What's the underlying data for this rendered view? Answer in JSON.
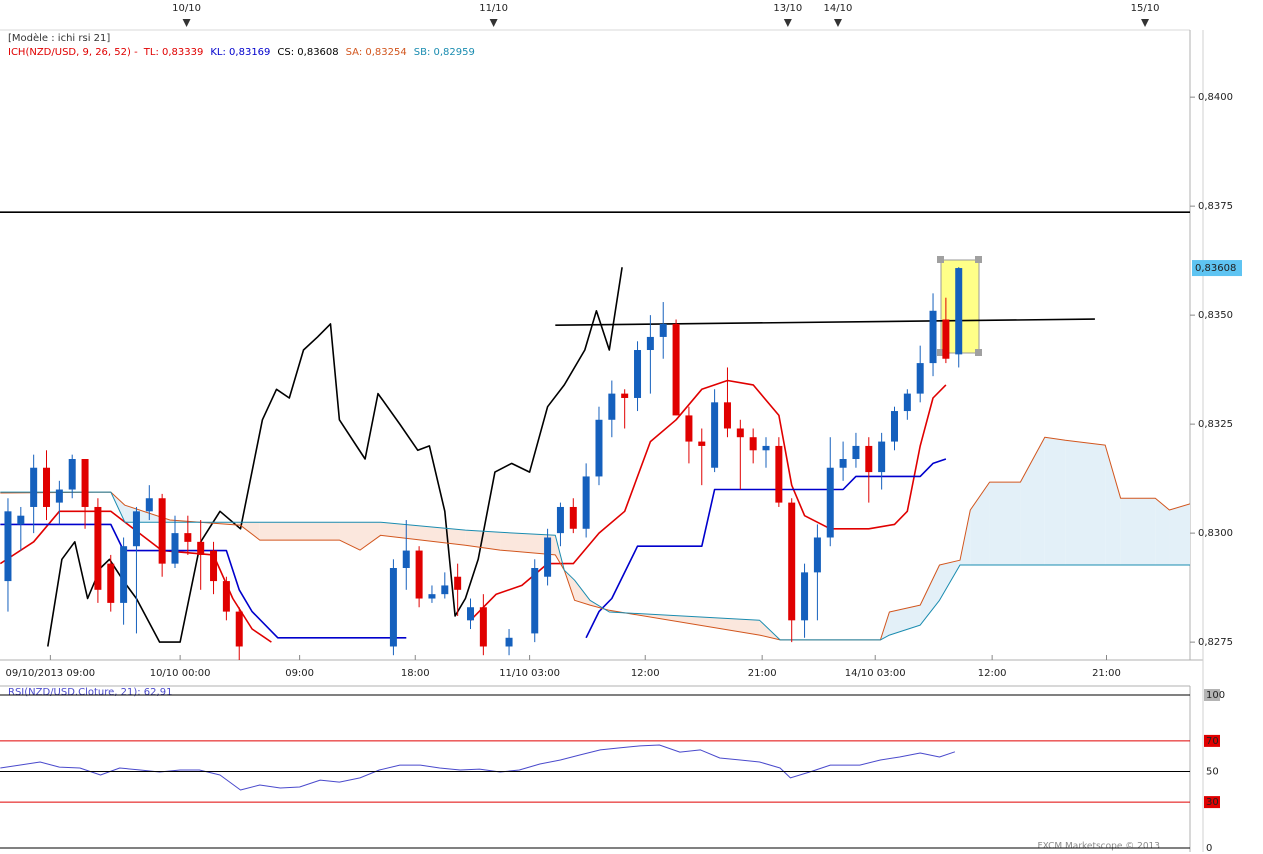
{
  "chart_data": [
    {
      "type": "candlestick",
      "title": "[Modèle : ichi rsi 21]",
      "legend_items": [
        {
          "text": "ICH(NZD/USD, 9, 26, 52) -",
          "color": "#e00000"
        },
        {
          "text": "TL: 0,83339",
          "color": "#e00000"
        },
        {
          "text": "KL: 0,83169",
          "color": "#0000cc"
        },
        {
          "text": "CS: 0,83608",
          "color": "#000000"
        },
        {
          "text": "SA: 0,83254",
          "color": "#d2561e"
        },
        {
          "text": "SB: 0,82959",
          "color": "#1a8cb0"
        }
      ],
      "up_color": "#1560bd",
      "down_color": "#e00000",
      "x": [
        0,
        1,
        2,
        3,
        4,
        5,
        6,
        7,
        8,
        9,
        10,
        11,
        12,
        13,
        14,
        15,
        16,
        17,
        18,
        30,
        31,
        32,
        33,
        34,
        35,
        36,
        37,
        39,
        41,
        42,
        43,
        44,
        45,
        46,
        47,
        48,
        49,
        50,
        51,
        52,
        53,
        54,
        55,
        56,
        57,
        58,
        59,
        60,
        61,
        62,
        63,
        64,
        65,
        66,
        67,
        68,
        69,
        70,
        71,
        72,
        73,
        74
      ],
      "open": [
        0.8289,
        0.8302,
        0.8306,
        0.8315,
        0.8307,
        0.831,
        0.8317,
        0.8306,
        0.8293,
        0.8284,
        0.8297,
        0.8305,
        0.8308,
        0.8293,
        0.83,
        0.8298,
        0.8296,
        0.8289,
        0.8282,
        0.8274,
        0.8292,
        0.8296,
        0.8285,
        0.8286,
        0.829,
        0.828,
        0.8283,
        0.8274,
        0.8277,
        0.829,
        0.83,
        0.8306,
        0.8301,
        0.8313,
        0.8326,
        0.8332,
        0.8331,
        0.8342,
        0.8345,
        0.8348,
        0.8327,
        0.8321,
        0.8315,
        0.833,
        0.8324,
        0.8322,
        0.8319,
        0.832,
        0.8307,
        0.828,
        0.8291,
        0.8299,
        0.8315,
        0.8317,
        0.832,
        0.8314,
        0.8321,
        0.8328,
        0.8332,
        0.8339,
        0.8349,
        0.8341
      ],
      "high": [
        0.8308,
        0.8306,
        0.8318,
        0.8319,
        0.8312,
        0.8318,
        0.8317,
        0.8308,
        0.8295,
        0.8299,
        0.8306,
        0.8311,
        0.8309,
        0.8304,
        0.8304,
        0.8303,
        0.8298,
        0.829,
        0.8283,
        0.8294,
        0.8303,
        0.8297,
        0.8288,
        0.8291,
        0.8293,
        0.8285,
        0.8286,
        0.8278,
        0.8294,
        0.8301,
        0.8307,
        0.8308,
        0.8316,
        0.8329,
        0.8335,
        0.8333,
        0.8344,
        0.835,
        0.8353,
        0.8349,
        0.8329,
        0.8324,
        0.8333,
        0.8338,
        0.8326,
        0.8324,
        0.8322,
        0.8322,
        0.8308,
        0.8293,
        0.8302,
        0.8322,
        0.8321,
        0.8323,
        0.8322,
        0.8323,
        0.8329,
        0.8333,
        0.8343,
        0.8355,
        0.8354,
        0.8361
      ],
      "low": [
        0.8282,
        0.8296,
        0.83,
        0.8303,
        0.8302,
        0.8308,
        0.8301,
        0.8284,
        0.8282,
        0.8279,
        0.8277,
        0.8303,
        0.829,
        0.8292,
        0.8295,
        0.8287,
        0.8286,
        0.828,
        0.827,
        0.8272,
        0.8287,
        0.8283,
        0.8284,
        0.8285,
        0.8281,
        0.8278,
        0.8272,
        0.8272,
        0.8275,
        0.8288,
        0.8297,
        0.83,
        0.8299,
        0.8311,
        0.8322,
        0.8324,
        0.8328,
        0.8332,
        0.834,
        0.8327,
        0.8316,
        0.8311,
        0.8314,
        0.8322,
        0.831,
        0.8316,
        0.8315,
        0.8306,
        0.8275,
        0.8276,
        0.828,
        0.8297,
        0.8312,
        0.8315,
        0.8307,
        0.831,
        0.8319,
        0.8326,
        0.833,
        0.8336,
        0.8339,
        0.8338
      ],
      "close": [
        0.8305,
        0.8304,
        0.8315,
        0.8306,
        0.831,
        0.8317,
        0.8306,
        0.8287,
        0.8284,
        0.8297,
        0.8305,
        0.8308,
        0.8293,
        0.83,
        0.8298,
        0.8295,
        0.8289,
        0.8282,
        0.8274,
        0.8292,
        0.8296,
        0.8285,
        0.8286,
        0.8288,
        0.8287,
        0.8283,
        0.8274,
        0.8276,
        0.8292,
        0.8299,
        0.8306,
        0.8301,
        0.8313,
        0.8326,
        0.8332,
        0.8331,
        0.8342,
        0.8345,
        0.8348,
        0.8327,
        0.8321,
        0.832,
        0.833,
        0.8324,
        0.8322,
        0.8319,
        0.832,
        0.8307,
        0.828,
        0.8291,
        0.8299,
        0.8315,
        0.8317,
        0.832,
        0.8314,
        0.8321,
        0.8328,
        0.8332,
        0.8339,
        0.8351,
        0.834,
        0.83608
      ],
      "series": [
        {
          "color": "#e00000",
          "x": [
            -0.6,
            2,
            4,
            8,
            12,
            16,
            17.5,
            19,
            20.5,
            28,
            36,
            38,
            40,
            42,
            44,
            46,
            48,
            50,
            52,
            54,
            56,
            58,
            60,
            61,
            62,
            64,
            67,
            69,
            70,
            71,
            72,
            73
          ],
          "values": [
            0.8293,
            0.8298,
            0.8305,
            0.8305,
            0.8296,
            0.8295,
            0.8285,
            0.8278,
            0.8275,
            null,
            0.828,
            0.8286,
            0.8288,
            0.8293,
            0.8293,
            0.83,
            0.8305,
            0.8321,
            0.8326,
            0.8333,
            0.8335,
            0.8334,
            0.8327,
            0.8311,
            0.8304,
            0.8301,
            0.8301,
            0.8302,
            0.8305,
            0.832,
            0.8331,
            0.8334
          ]
        },
        {
          "color": "#0000cc",
          "x": [
            -0.6,
            8,
            9,
            17,
            18,
            19,
            21,
            31,
            38,
            45,
            46,
            47,
            49,
            54,
            55,
            65,
            66,
            71,
            72,
            73
          ],
          "values": [
            0.8302,
            0.8302,
            0.8296,
            0.8296,
            0.8287,
            0.8282,
            0.8276,
            0.8276,
            null,
            0.8276,
            0.8282,
            0.8285,
            0.8297,
            0.8297,
            0.831,
            0.831,
            0.8313,
            0.8313,
            0.8316,
            0.8317
          ]
        },
        {
          "color": "#000000",
          "x": [
            3.1,
            4.2,
            5.2,
            6.2,
            7.2,
            7.9,
            9.0,
            10.0,
            11.8,
            13.4,
            15.0,
            16.5,
            18.1,
            19.8,
            20.9,
            21.9,
            23.0,
            24.1,
            25.1,
            25.8,
            27.8,
            28.8,
            30.5,
            31.9,
            32.8,
            34.0,
            34.8,
            35.6,
            36.6,
            37.9,
            39.2,
            40.6,
            42.0,
            43.3,
            44.9,
            45.8,
            46.8,
            47.8
          ],
          "values": [
            0.8274,
            0.8294,
            0.8298,
            0.8285,
            0.8292,
            0.8294,
            0.8289,
            0.8285,
            0.8275,
            0.8275,
            0.8298,
            0.8305,
            0.8301,
            0.8326,
            0.8333,
            0.8331,
            0.8342,
            0.8345,
            0.8348,
            0.8326,
            0.8317,
            0.8332,
            0.8325,
            0.8319,
            0.832,
            0.8305,
            0.8281,
            0.8285,
            0.8294,
            0.8314,
            0.8316,
            0.8314,
            0.8329,
            0.8334,
            0.8342,
            0.8351,
            0.8342,
            0.8361
          ]
        },
        {
          "color": "#d2561e",
          "x": [
            -0.6,
            8.0,
            9.1,
            12.6,
            18.1,
            19.6,
            25.8,
            27.4,
            29.0,
            35.6,
            38.3,
            42.6,
            43.3,
            44.1,
            45.3,
            46.8,
            58.5,
            60.1,
            67.9,
            68.6,
            71.0,
            72.5,
            74.1,
            74.9,
            76.4,
            78.8,
            80.7,
            82.3,
            85.4,
            86.6,
            89.3,
            90.4,
            92.0
          ],
          "values": [
            0.83092,
            0.83094,
            0.83064,
            0.8303,
            0.83018,
            0.82984,
            0.82984,
            0.82961,
            0.82995,
            0.82972,
            0.82961,
            0.8295,
            0.82915,
            0.82846,
            0.82835,
            0.82823,
            0.82766,
            0.82755,
            0.82755,
            0.82819,
            0.82835,
            0.82927,
            0.82938,
            0.83053,
            0.83117,
            0.83117,
            0.8322,
            0.83213,
            0.83202,
            0.8308,
            0.8308,
            0.83053,
            0.83067
          ]
        },
        {
          "color": "#1a8cb0",
          "x": [
            -0.6,
            8.0,
            9.1,
            12.6,
            18.1,
            19.6,
            25.8,
            27.4,
            29.0,
            35.6,
            38.3,
            42.6,
            43.3,
            44.1,
            45.3,
            46.8,
            58.5,
            60.1,
            67.9,
            68.6,
            71.0,
            72.5,
            74.1,
            74.9,
            76.4,
            78.8,
            80.7,
            82.3,
            85.4,
            86.6,
            89.3,
            90.4,
            92.0
          ],
          "values": [
            0.83094,
            0.83094,
            0.83025,
            0.83025,
            0.83025,
            0.83025,
            0.83025,
            0.83025,
            0.83025,
            0.83007,
            0.83002,
            0.82995,
            0.82915,
            0.82892,
            0.82846,
            0.82819,
            0.828,
            0.82755,
            0.82755,
            0.82766,
            0.82789,
            0.82846,
            0.82927,
            0.82927,
            0.82927,
            0.82927,
            0.82927,
            0.82927,
            0.82927,
            0.82927,
            0.82927,
            0.82927,
            0.82927
          ]
        },
        {
          "color": "#000000",
          "x": [
            -0.62,
            92.0
          ],
          "values": [
            0.83736,
            0.83736
          ]
        },
        {
          "color": "#000000",
          "x": [
            42.6,
            84.6
          ],
          "values": [
            0.83477,
            0.83491
          ]
        }
      ],
      "cloud_colors": {
        "bullish": "#e3f0f8",
        "bearish": "#fbe7dd"
      },
      "xlim": [
        -0.62,
        92.0
      ],
      "ylim": [
        0.82709,
        0.84154
      ],
      "yticks": [
        {
          "value": 0.8275,
          "label": "0,8275"
        },
        {
          "value": 0.83,
          "label": "0,8300"
        },
        {
          "value": 0.8325,
          "label": "0,8325"
        },
        {
          "value": 0.835,
          "label": "0,8350"
        },
        {
          "value": 0.8375,
          "label": "0,8375"
        },
        {
          "value": 0.84,
          "label": "0,8400"
        }
      ],
      "xticks": [
        {
          "value": 3.3,
          "label": "09/10/2013 09:00"
        },
        {
          "value": 13.4,
          "label": "10/10 00:00"
        },
        {
          "value": 22.7,
          "label": "09:00"
        },
        {
          "value": 31.7,
          "label": "18:00"
        },
        {
          "value": 40.6,
          "label": "11/10 03:00"
        },
        {
          "value": 49.6,
          "label": "12:00"
        },
        {
          "value": 58.7,
          "label": "21:00"
        },
        {
          "value": 67.5,
          "label": "14/10 03:00"
        },
        {
          "value": 76.6,
          "label": "12:00"
        },
        {
          "value": 85.5,
          "label": "21:00"
        }
      ],
      "top_dates": [
        {
          "value": 13.9,
          "label": "10/10"
        },
        {
          "value": 37.8,
          "label": "11/10"
        },
        {
          "value": 60.7,
          "label": "13/10"
        },
        {
          "value": 64.6,
          "label": "14/10"
        },
        {
          "value": 88.5,
          "label": "15/10"
        }
      ],
      "price_tag": {
        "value": 0.83608,
        "label": "0,83608",
        "color": "#5ec4f2"
      }
    },
    {
      "type": "line",
      "title": "RSI(NZD/USD.Cloture, 21): 62,91",
      "color": "#4a4acc",
      "x": [
        -0.6,
        0.9,
        2.5,
        4.0,
        5.6,
        7.2,
        8.7,
        10.3,
        11.8,
        13.4,
        14.9,
        16.5,
        18.1,
        19.6,
        21.2,
        22.7,
        24.3,
        25.8,
        27.4,
        28.9,
        30.5,
        32.1,
        33.6,
        35.2,
        36.7,
        38.3,
        39.8,
        41.4,
        43.0,
        44.5,
        46.1,
        47.6,
        49.2,
        50.7,
        52.3,
        53.9,
        55.4,
        57.0,
        58.5,
        60.1,
        60.9,
        62.4,
        64.0,
        66.3,
        67.9,
        69.4,
        71.0,
        72.5,
        73.7
      ],
      "values": [
        52.3,
        54.2,
        56.2,
        52.9,
        52.3,
        47.7,
        52.3,
        51.0,
        49.7,
        51.0,
        51.0,
        47.7,
        37.9,
        41.2,
        39.2,
        39.9,
        44.4,
        43.1,
        45.8,
        51.0,
        54.2,
        54.2,
        52.3,
        51.0,
        51.6,
        49.7,
        51.0,
        54.9,
        57.5,
        60.8,
        64.1,
        65.4,
        66.7,
        67.3,
        62.7,
        64.1,
        58.8,
        57.5,
        56.2,
        52.3,
        45.8,
        49.7,
        54.2,
        54.2,
        57.5,
        59.5,
        62.1,
        59.5,
        62.9
      ],
      "xlim": [
        -0.62,
        92.0
      ],
      "ylim": [
        0,
        100
      ],
      "yticks": [
        100,
        70,
        50,
        30,
        0
      ],
      "ytick_line_colors": [
        "#000000",
        "#e00000",
        "#000000",
        "#e00000",
        "#000000"
      ],
      "ytick_label_backgrounds": [
        "#b4b4b4",
        "#e00000",
        "#ffffff",
        "#e00000",
        "#ffffff"
      ]
    }
  ],
  "footer": "FXCM Marketscope © 2013"
}
